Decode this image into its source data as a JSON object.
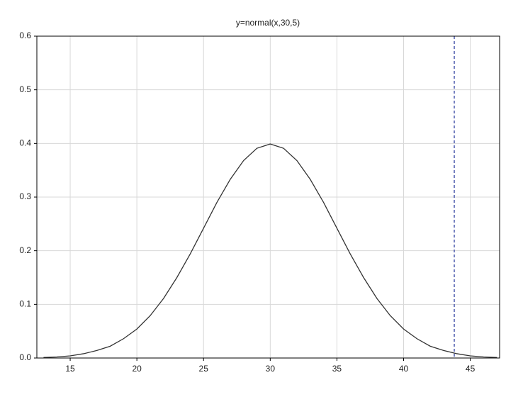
{
  "chart_data": {
    "type": "line",
    "title": "y=normal(x,30,5)",
    "x": [
      13,
      14,
      15,
      16,
      17,
      18,
      19,
      20,
      21,
      22,
      23,
      24,
      25,
      26,
      27,
      28,
      29,
      30,
      31,
      32,
      33,
      34,
      35,
      36,
      37,
      38,
      39,
      40,
      41,
      42,
      43,
      44,
      45,
      46,
      47
    ],
    "series": [
      {
        "color": "#333333",
        "values": [
          0.001,
          0.002,
          0.004,
          0.008,
          0.014,
          0.022,
          0.036,
          0.054,
          0.079,
          0.111,
          0.15,
          0.194,
          0.242,
          0.29,
          0.333,
          0.368,
          0.391,
          0.399,
          0.391,
          0.368,
          0.333,
          0.29,
          0.242,
          0.194,
          0.15,
          0.111,
          0.079,
          0.054,
          0.036,
          0.022,
          0.014,
          0.008,
          0.004,
          0.002,
          0.001
        ]
      }
    ],
    "vlines": [
      {
        "x": 43.8,
        "color": "#3040a0"
      }
    ],
    "xlim": [
      12.5,
      47.2
    ],
    "xticks": [
      15,
      20,
      25,
      30,
      35,
      40,
      45
    ],
    "ylim": [
      0,
      0.6
    ],
    "yticks": [
      {
        "value": 0,
        "label": "0.0"
      },
      0.1,
      0.2,
      0.3,
      0.4,
      0.5,
      0.6
    ],
    "grid": true
  }
}
